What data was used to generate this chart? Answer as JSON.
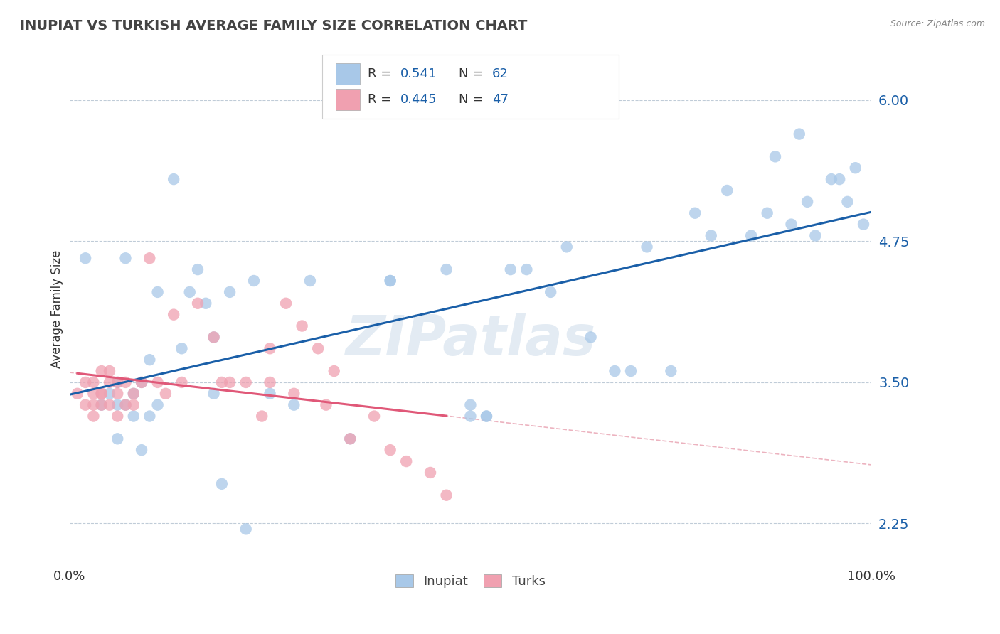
{
  "title": "INUPIAT VS TURKISH AVERAGE FAMILY SIZE CORRELATION CHART",
  "source_text": "Source: ZipAtlas.com",
  "ylabel": "Average Family Size",
  "xlim": [
    0,
    1
  ],
  "ylim": [
    1.9,
    6.4
  ],
  "yticks": [
    2.25,
    3.5,
    4.75,
    6.0
  ],
  "ytick_labels": [
    "2.25",
    "3.50",
    "4.75",
    "6.00"
  ],
  "xticks": [
    0,
    1
  ],
  "xticklabels": [
    "0.0%",
    "100.0%"
  ],
  "inupiat_color": "#a8c8e8",
  "turks_color": "#f0a0b0",
  "inupiat_line_color": "#1a5fa8",
  "turks_line_color": "#e05878",
  "turks_dash_color": "#e8a0b0",
  "background_color": "#ffffff",
  "watermark": "ZIPatlas",
  "inupiat_x": [
    0.02,
    0.04,
    0.05,
    0.06,
    0.06,
    0.07,
    0.08,
    0.09,
    0.1,
    0.11,
    0.13,
    0.14,
    0.15,
    0.16,
    0.17,
    0.18,
    0.19,
    0.2,
    0.22,
    0.25,
    0.28,
    0.3,
    0.35,
    0.4,
    0.47,
    0.5,
    0.52,
    0.55,
    0.57,
    0.6,
    0.62,
    0.65,
    0.68,
    0.7,
    0.72,
    0.75,
    0.78,
    0.8,
    0.82,
    0.85,
    0.87,
    0.88,
    0.9,
    0.91,
    0.92,
    0.93,
    0.95,
    0.96,
    0.97,
    0.98,
    0.99,
    0.06,
    0.07,
    0.08,
    0.09,
    0.1,
    0.11,
    0.18,
    0.23,
    0.4,
    0.5,
    0.52
  ],
  "inupiat_y": [
    4.6,
    3.3,
    3.4,
    3.5,
    3.3,
    3.3,
    3.2,
    3.5,
    3.7,
    4.3,
    5.3,
    3.8,
    4.3,
    4.5,
    4.2,
    3.9,
    2.6,
    4.3,
    2.2,
    3.4,
    3.3,
    4.4,
    3.0,
    4.4,
    4.5,
    3.2,
    3.2,
    4.5,
    4.5,
    4.3,
    4.7,
    3.9,
    3.6,
    3.6,
    4.7,
    3.6,
    5.0,
    4.8,
    5.2,
    4.8,
    5.0,
    5.5,
    4.9,
    5.7,
    5.1,
    4.8,
    5.3,
    5.3,
    5.1,
    5.4,
    4.9,
    3.0,
    4.6,
    3.4,
    2.9,
    3.2,
    3.3,
    3.4,
    4.4,
    4.4,
    3.3,
    3.2
  ],
  "turks_x": [
    0.01,
    0.02,
    0.02,
    0.03,
    0.03,
    0.03,
    0.03,
    0.04,
    0.04,
    0.04,
    0.04,
    0.05,
    0.05,
    0.05,
    0.06,
    0.06,
    0.06,
    0.07,
    0.07,
    0.08,
    0.08,
    0.09,
    0.1,
    0.11,
    0.12,
    0.13,
    0.14,
    0.16,
    0.18,
    0.19,
    0.2,
    0.22,
    0.24,
    0.25,
    0.27,
    0.29,
    0.31,
    0.33,
    0.35,
    0.38,
    0.4,
    0.42,
    0.45,
    0.47,
    0.25,
    0.28,
    0.32
  ],
  "turks_y": [
    3.4,
    3.5,
    3.3,
    3.4,
    3.3,
    3.5,
    3.2,
    3.4,
    3.4,
    3.6,
    3.3,
    3.5,
    3.6,
    3.3,
    3.4,
    3.2,
    3.5,
    3.3,
    3.5,
    3.4,
    3.3,
    3.5,
    4.6,
    3.5,
    3.4,
    4.1,
    3.5,
    4.2,
    3.9,
    3.5,
    3.5,
    3.5,
    3.2,
    3.8,
    4.2,
    4.0,
    3.8,
    3.6,
    3.0,
    3.2,
    2.9,
    2.8,
    2.7,
    2.5,
    3.5,
    3.4,
    3.3
  ]
}
